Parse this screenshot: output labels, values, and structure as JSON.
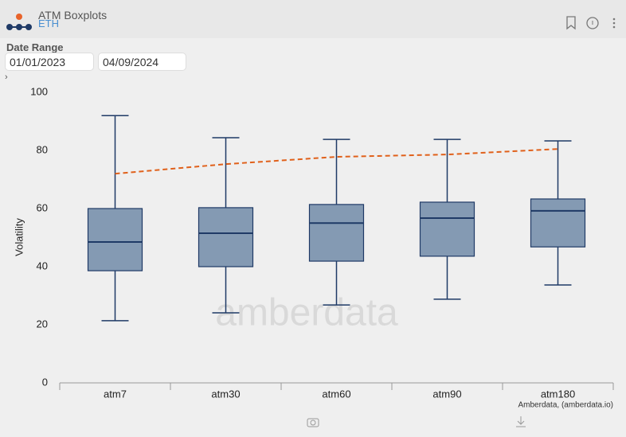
{
  "header": {
    "title": "ATM Boxplots",
    "subtitle": "ETH"
  },
  "filters": {
    "label": "Date Range",
    "start": "01/01/2023",
    "end": "04/09/2024",
    "expand": "›"
  },
  "watermark": "amberdata",
  "credit": "Amberdata, (amberdata.io)",
  "chart_data": {
    "type": "box",
    "y_label": "Volatility",
    "categories": [
      "atm7",
      "atm30",
      "atm60",
      "atm90",
      "atm180"
    ],
    "min": [
      21.4,
      24.1,
      26.8,
      28.8,
      33.7
    ],
    "q1": [
      38.6,
      40,
      41.9,
      43.6,
      46.8
    ],
    "median": [
      48.5,
      51.5,
      55,
      56.7,
      59.2
    ],
    "q3": [
      60,
      60.3,
      61.4,
      62.2,
      63.3
    ],
    "max": [
      92,
      84.4,
      83.8,
      83.8,
      83.3
    ],
    "box_color": "#7890ac",
    "edge_color": "#1f3a66",
    "line": {
      "color": "#e0601a",
      "dashed": true,
      "values": [
        72,
        75.3,
        77.8,
        78.6,
        80.5
      ]
    },
    "ylim": [
      0,
      100
    ],
    "yticks": [
      0,
      20,
      40,
      60,
      80,
      100
    ]
  }
}
